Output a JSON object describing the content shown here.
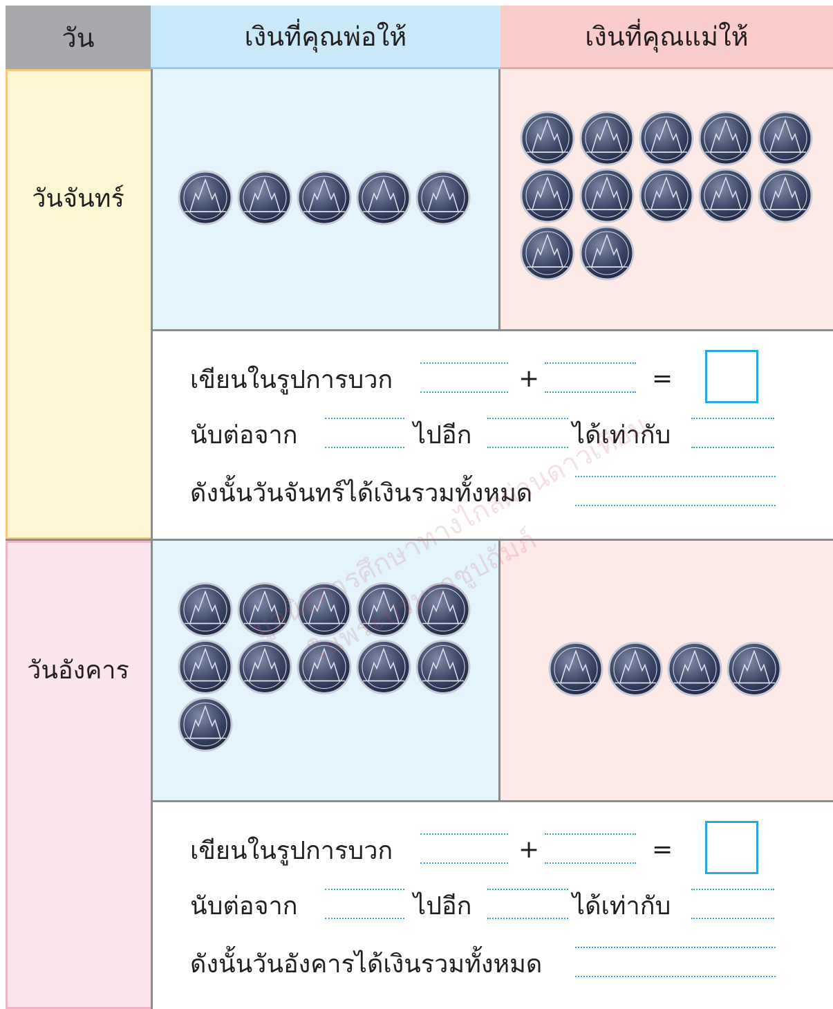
{
  "header": {
    "day": "วัน",
    "father": "เงินที่คุณพ่อให้",
    "mother": "เงินที่คุณแม่ให้"
  },
  "rows": [
    {
      "day": "วันจันทร์",
      "father_coins": 5,
      "mother_coins": 12,
      "write_label": "เขียนในรูปการบวก",
      "plus": "+",
      "equals": "=",
      "count_from": "นับต่อจาก",
      "then_more": "ไปอีก",
      "result": "ได้เท่ากับ",
      "conclusion": "ดังนั้นวันจันทร์ได้เงินรวมทั้งหมด"
    },
    {
      "day": "วันอังคาร",
      "father_coins": 11,
      "mother_coins": 4,
      "write_label": "เขียนในรูปการบวก",
      "plus": "+",
      "equals": "=",
      "count_from": "นับต่อจาก",
      "then_more": "ไปอีก",
      "result": "ได้เท่ากับ",
      "conclusion": "ดังนั้นวันอังคารได้เงินรวมทั้งหมด"
    }
  ],
  "watermark": {
    "line1": "มูลนิธิการศึกษาทางไกลผ่านดาวเทียม",
    "line2": "ในพระบรมราชูปถัมภ์"
  }
}
